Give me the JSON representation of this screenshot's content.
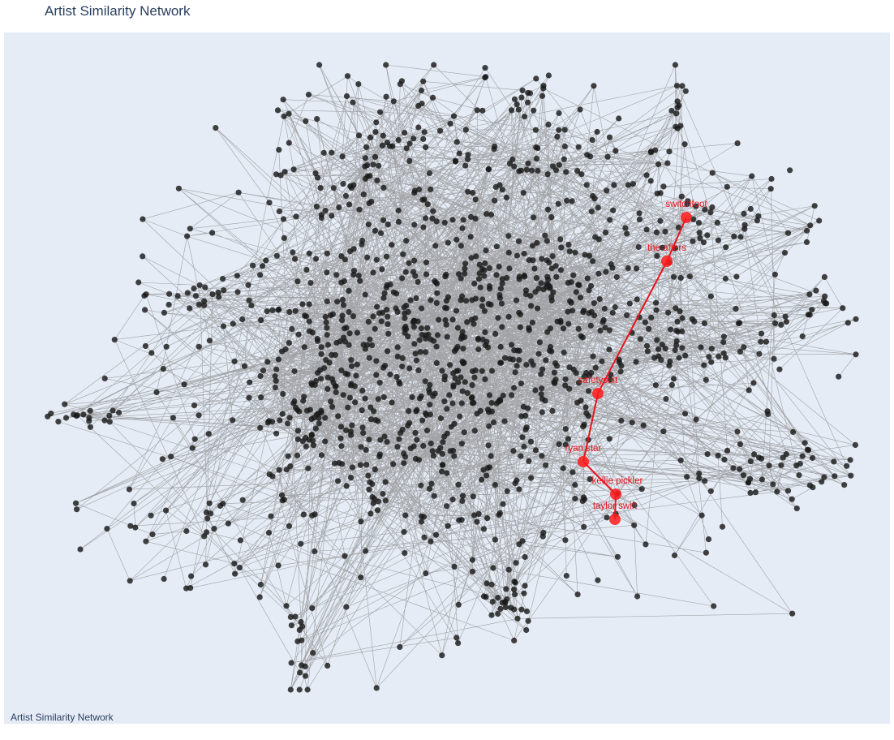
{
  "title": "Artist Similarity Network",
  "annotation": "Artist Similarity Network",
  "colors": {
    "background": "#e5ecf6",
    "node": "#1a1a1a",
    "edge": "#8a8a8a",
    "highlight": "#e8141b",
    "text": "#2a3f5f"
  },
  "chart_data": {
    "type": "network",
    "title": "Artist Similarity Network",
    "axes_visible": false,
    "grid": false,
    "highlighted_path": [
      "switchfoot",
      "the afters",
      "safetysuit",
      "ryan star",
      "kellie pickler",
      "taylor swift"
    ],
    "highlighted_edges": [
      [
        "switchfoot",
        "the afters"
      ],
      [
        "the afters",
        "safetysuit"
      ],
      [
        "safetysuit",
        "ryan star"
      ],
      [
        "ryan star",
        "kellie pickler"
      ],
      [
        "kellie pickler",
        "taylor swift"
      ]
    ]
  }
}
